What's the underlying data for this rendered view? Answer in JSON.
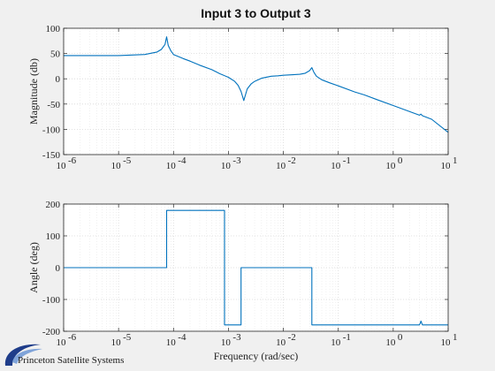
{
  "chart_data": [
    {
      "type": "line",
      "title": "Input 3 to Output 3",
      "xlabel": "",
      "ylabel": "Magnitude (db)",
      "xscale": "log",
      "xlim": [
        1e-06,
        10
      ],
      "ylim": [
        -150,
        100
      ],
      "xticks": [
        1e-06,
        1e-05,
        0.0001,
        0.001,
        0.01,
        0.1,
        1,
        10
      ],
      "xtick_labels": [
        "10",
        "10",
        "10",
        "10",
        "10",
        "10",
        "10",
        "10"
      ],
      "xtick_exponents": [
        "-6",
        "-5",
        "-4",
        "-3",
        "-2",
        "-1",
        "0",
        "1"
      ],
      "yticks": [
        -150,
        -100,
        -50,
        0,
        50,
        100
      ],
      "ytick_labels": [
        "-150",
        "-100",
        "-50",
        "0",
        "50",
        "100"
      ],
      "grid": true,
      "series": [
        {
          "color": "#0072bd",
          "x": [
            1e-06,
            1e-05,
            3e-05,
            5e-05,
            6e-05,
            7e-05,
            7.5e-05,
            8e-05,
            9e-05,
            0.0001,
            0.00015,
            0.0002,
            0.0003,
            0.0005,
            0.0007,
            0.001,
            0.0013,
            0.0015,
            0.0017,
            0.0019,
            0.0022,
            0.0026,
            0.003,
            0.004,
            0.006,
            0.008,
            0.01,
            0.015,
            0.02,
            0.025,
            0.03,
            0.033,
            0.036,
            0.04,
            0.05,
            0.07,
            0.1,
            0.2,
            0.3,
            0.5,
            1,
            2,
            3,
            3.2,
            3.4,
            5,
            10
          ],
          "y": [
            46,
            46,
            48,
            53,
            58,
            68,
            83,
            66,
            55,
            48,
            40,
            35,
            27,
            18,
            10,
            3,
            -5,
            -13,
            -25,
            -43,
            -20,
            -10,
            -5,
            1,
            5,
            6,
            7,
            8,
            9,
            11,
            16,
            22,
            13,
            5,
            -2,
            -8,
            -14,
            -26,
            -32,
            -41,
            -53,
            -65,
            -72,
            -70,
            -73,
            -80,
            -106
          ]
        }
      ]
    },
    {
      "type": "line",
      "title": "",
      "xlabel": "Frequency (rad/sec)",
      "ylabel": "Angle (deg)",
      "xscale": "log",
      "xlim": [
        1e-06,
        10
      ],
      "ylim": [
        -200,
        200
      ],
      "xticks": [
        1e-06,
        1e-05,
        0.0001,
        0.001,
        0.01,
        0.1,
        1,
        10
      ],
      "xtick_labels": [
        "10",
        "10",
        "10",
        "10",
        "10",
        "10",
        "10",
        "10"
      ],
      "xtick_exponents": [
        "-6",
        "-5",
        "-4",
        "-3",
        "-2",
        "-1",
        "0",
        "1"
      ],
      "yticks": [
        -200,
        -100,
        0,
        100,
        200
      ],
      "ytick_labels": [
        "-200",
        "-100",
        "0",
        "100",
        "200"
      ],
      "grid": true,
      "series": [
        {
          "color": "#0072bd",
          "x": [
            1e-06,
            7.5e-05,
            7.5e-05,
            0.00085,
            0.00085,
            0.0017,
            0.0017,
            0.033,
            0.033,
            3.0,
            3.1,
            3.2,
            3.4,
            10
          ],
          "y": [
            0,
            0,
            180,
            180,
            -180,
            -180,
            0,
            0,
            -180,
            -180,
            -175,
            -168,
            -180,
            -180
          ]
        }
      ]
    }
  ],
  "logo": {
    "text": "Princeton Satellite Systems",
    "color": "#1f3d8a"
  }
}
